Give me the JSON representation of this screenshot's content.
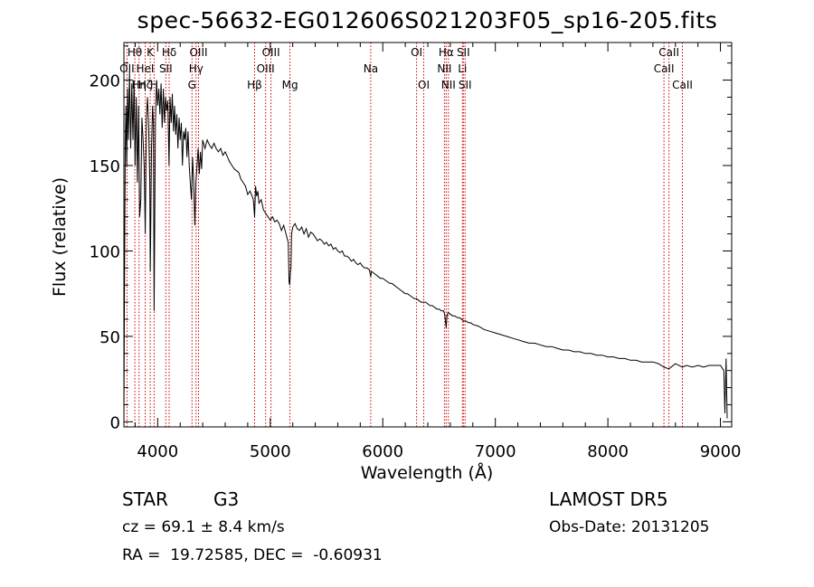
{
  "header": {
    "title": "spec-56632-EG012606S021203F05_sp16-205.fits"
  },
  "footer": {
    "class_label": "STAR",
    "subclass": "G3",
    "survey": "LAMOST DR5",
    "cz": "cz = 69.1 ± 8.4 km/s",
    "obs_date": "Obs-Date: 20131205",
    "coords": "RA =  19.72585, DEC =  -0.60931"
  },
  "colors": {
    "spectrum": "#000000",
    "line_marker": "#cc0000",
    "axes": "#000000"
  },
  "chart_data": {
    "type": "line",
    "title": "spec-56632-EG012606S021203F05_sp16-205.fits",
    "xlabel": "Wavelength (Å)",
    "ylabel": "Flux (relative)",
    "xlim": [
      3700,
      9100
    ],
    "ylim": [
      -3,
      222
    ],
    "xticks": [
      4000,
      5000,
      6000,
      7000,
      8000,
      9000
    ],
    "yticks": [
      0,
      50,
      100,
      150,
      200
    ],
    "grid": false,
    "series": [
      {
        "values": [
          [
            3700,
            2
          ],
          [
            3705,
            75
          ],
          [
            3712,
            160
          ],
          [
            3718,
            185
          ],
          [
            3725,
            150
          ],
          [
            3732,
            195
          ],
          [
            3740,
            165
          ],
          [
            3750,
            205
          ],
          [
            3760,
            160
          ],
          [
            3770,
            198
          ],
          [
            3780,
            165
          ],
          [
            3790,
            200
          ],
          [
            3800,
            150
          ],
          [
            3810,
            190
          ],
          [
            3820,
            140
          ],
          [
            3830,
            185
          ],
          [
            3840,
            120
          ],
          [
            3850,
            130
          ],
          [
            3860,
            178
          ],
          [
            3870,
            165
          ],
          [
            3880,
            150
          ],
          [
            3890,
            110
          ],
          [
            3900,
            178
          ],
          [
            3910,
            190
          ],
          [
            3920,
            172
          ],
          [
            3930,
            140
          ],
          [
            3934,
            88
          ],
          [
            3938,
            110
          ],
          [
            3945,
            160
          ],
          [
            3955,
            185
          ],
          [
            3962,
            175
          ],
          [
            3968,
            65
          ],
          [
            3972,
            95
          ],
          [
            3980,
            175
          ],
          [
            3990,
            200
          ],
          [
            4000,
            185
          ],
          [
            4010,
            195
          ],
          [
            4020,
            180
          ],
          [
            4030,
            198
          ],
          [
            4040,
            172
          ],
          [
            4050,
            195
          ],
          [
            4060,
            175
          ],
          [
            4070,
            190
          ],
          [
            4080,
            182
          ],
          [
            4090,
            188
          ],
          [
            4101,
            150
          ],
          [
            4110,
            190
          ],
          [
            4120,
            175
          ],
          [
            4130,
            192
          ],
          [
            4140,
            170
          ],
          [
            4150,
            185
          ],
          [
            4160,
            168
          ],
          [
            4170,
            180
          ],
          [
            4180,
            160
          ],
          [
            4190,
            178
          ],
          [
            4200,
            165
          ],
          [
            4210,
            175
          ],
          [
            4220,
            150
          ],
          [
            4230,
            170
          ],
          [
            4240,
            165
          ],
          [
            4250,
            172
          ],
          [
            4260,
            155
          ],
          [
            4270,
            170
          ],
          [
            4280,
            150
          ],
          [
            4290,
            140
          ],
          [
            4300,
            130
          ],
          [
            4310,
            155
          ],
          [
            4320,
            140
          ],
          [
            4330,
            115
          ],
          [
            4340,
            140
          ],
          [
            4350,
            150
          ],
          [
            4360,
            160
          ],
          [
            4370,
            145
          ],
          [
            4380,
            158
          ],
          [
            4390,
            148
          ],
          [
            4400,
            165
          ],
          [
            4420,
            160
          ],
          [
            4440,
            165
          ],
          [
            4460,
            162
          ],
          [
            4480,
            160
          ],
          [
            4500,
            163
          ],
          [
            4520,
            160
          ],
          [
            4540,
            158
          ],
          [
            4560,
            160
          ],
          [
            4580,
            156
          ],
          [
            4600,
            158
          ],
          [
            4620,
            155
          ],
          [
            4640,
            152
          ],
          [
            4660,
            150
          ],
          [
            4680,
            148
          ],
          [
            4700,
            147
          ],
          [
            4720,
            146
          ],
          [
            4740,
            142
          ],
          [
            4760,
            140
          ],
          [
            4780,
            138
          ],
          [
            4800,
            133
          ],
          [
            4820,
            135
          ],
          [
            4840,
            132
          ],
          [
            4850,
            130
          ],
          [
            4861,
            120
          ],
          [
            4870,
            138
          ],
          [
            4880,
            132
          ],
          [
            4890,
            135
          ],
          [
            4900,
            128
          ],
          [
            4920,
            130
          ],
          [
            4940,
            124
          ],
          [
            4960,
            122
          ],
          [
            4980,
            120
          ],
          [
            5000,
            118
          ],
          [
            5020,
            120
          ],
          [
            5040,
            117
          ],
          [
            5060,
            118
          ],
          [
            5080,
            116
          ],
          [
            5100,
            112
          ],
          [
            5120,
            115
          ],
          [
            5140,
            110
          ],
          [
            5160,
            105
          ],
          [
            5167,
            82
          ],
          [
            5173,
            80
          ],
          [
            5180,
            88
          ],
          [
            5184,
            90
          ],
          [
            5190,
            110
          ],
          [
            5200,
            114
          ],
          [
            5220,
            116
          ],
          [
            5240,
            113
          ],
          [
            5260,
            112
          ],
          [
            5280,
            114
          ],
          [
            5300,
            110
          ],
          [
            5320,
            113
          ],
          [
            5340,
            108
          ],
          [
            5360,
            111
          ],
          [
            5380,
            110
          ],
          [
            5400,
            108
          ],
          [
            5420,
            106
          ],
          [
            5440,
            107
          ],
          [
            5460,
            106
          ],
          [
            5480,
            104
          ],
          [
            5500,
            105
          ],
          [
            5520,
            103
          ],
          [
            5540,
            104
          ],
          [
            5560,
            101
          ],
          [
            5580,
            102
          ],
          [
            5600,
            100
          ],
          [
            5620,
            99
          ],
          [
            5640,
            100
          ],
          [
            5660,
            97
          ],
          [
            5680,
            97
          ],
          [
            5700,
            96
          ],
          [
            5720,
            94
          ],
          [
            5740,
            95
          ],
          [
            5760,
            93
          ],
          [
            5780,
            92
          ],
          [
            5800,
            93
          ],
          [
            5820,
            91
          ],
          [
            5840,
            90
          ],
          [
            5860,
            90
          ],
          [
            5880,
            89
          ],
          [
            5893,
            85
          ],
          [
            5900,
            88
          ],
          [
            5920,
            87
          ],
          [
            5940,
            86
          ],
          [
            5960,
            85
          ],
          [
            5980,
            84
          ],
          [
            6000,
            84
          ],
          [
            6020,
            83
          ],
          [
            6040,
            82
          ],
          [
            6060,
            81
          ],
          [
            6080,
            81
          ],
          [
            6100,
            80
          ],
          [
            6120,
            79
          ],
          [
            6140,
            78
          ],
          [
            6160,
            77
          ],
          [
            6180,
            76
          ],
          [
            6200,
            75
          ],
          [
            6220,
            75
          ],
          [
            6240,
            74
          ],
          [
            6260,
            73
          ],
          [
            6280,
            72
          ],
          [
            6300,
            72
          ],
          [
            6320,
            71
          ],
          [
            6340,
            70
          ],
          [
            6360,
            70
          ],
          [
            6380,
            70
          ],
          [
            6400,
            69
          ],
          [
            6420,
            68
          ],
          [
            6440,
            68
          ],
          [
            6460,
            67
          ],
          [
            6480,
            66
          ],
          [
            6500,
            66
          ],
          [
            6520,
            65
          ],
          [
            6540,
            65
          ],
          [
            6550,
            63
          ],
          [
            6563,
            55
          ],
          [
            6570,
            62
          ],
          [
            6580,
            64
          ],
          [
            6600,
            63
          ],
          [
            6620,
            62
          ],
          [
            6640,
            62
          ],
          [
            6660,
            61
          ],
          [
            6680,
            61
          ],
          [
            6700,
            60
          ],
          [
            6720,
            59
          ],
          [
            6740,
            59
          ],
          [
            6760,
            58
          ],
          [
            6780,
            58
          ],
          [
            6800,
            57
          ],
          [
            6850,
            56
          ],
          [
            6900,
            54
          ],
          [
            6950,
            53
          ],
          [
            7000,
            52
          ],
          [
            7050,
            51
          ],
          [
            7100,
            50
          ],
          [
            7150,
            49
          ],
          [
            7200,
            48
          ],
          [
            7250,
            47
          ],
          [
            7300,
            46
          ],
          [
            7350,
            46
          ],
          [
            7400,
            45
          ],
          [
            7450,
            44
          ],
          [
            7500,
            44
          ],
          [
            7550,
            43
          ],
          [
            7600,
            42
          ],
          [
            7650,
            42
          ],
          [
            7700,
            41
          ],
          [
            7750,
            41
          ],
          [
            7800,
            40
          ],
          [
            7850,
            40
          ],
          [
            7900,
            39
          ],
          [
            7950,
            39
          ],
          [
            8000,
            38
          ],
          [
            8050,
            38
          ],
          [
            8100,
            37
          ],
          [
            8150,
            37
          ],
          [
            8200,
            36
          ],
          [
            8250,
            36
          ],
          [
            8300,
            35
          ],
          [
            8350,
            35
          ],
          [
            8400,
            35
          ],
          [
            8450,
            34
          ],
          [
            8498,
            32
          ],
          [
            8542,
            31
          ],
          [
            8600,
            34
          ],
          [
            8662,
            32
          ],
          [
            8700,
            33
          ],
          [
            8750,
            32
          ],
          [
            8800,
            33
          ],
          [
            8850,
            32
          ],
          [
            8900,
            33
          ],
          [
            8950,
            33
          ],
          [
            9000,
            33
          ],
          [
            9030,
            30
          ],
          [
            9040,
            5
          ],
          [
            9050,
            37
          ],
          [
            9060,
            2
          ]
        ]
      }
    ],
    "line_markers": [
      {
        "label": "Hθ",
        "wavelength": 3797,
        "row": 0
      },
      {
        "label": "OII",
        "wavelength": 3727,
        "row": 1
      },
      {
        "label": "Hη",
        "wavelength": 3835,
        "row": 2
      },
      {
        "label": "K",
        "wavelength": 3934,
        "row": 0
      },
      {
        "label": "HeI",
        "wavelength": 3889,
        "row": 1
      },
      {
        "label": "Hζ",
        "wavelength": 3889,
        "row": 2
      },
      {
        "label": "Hδ",
        "wavelength": 4102,
        "row": 0
      },
      {
        "label": "SII",
        "wavelength": 4072,
        "row": 1
      },
      {
        "label": "H",
        "wavelength": 3968,
        "row": 2
      },
      {
        "label": "OIII",
        "wavelength": 4363,
        "row": 0
      },
      {
        "label": "Hγ",
        "wavelength": 4341,
        "row": 1
      },
      {
        "label": "G",
        "wavelength": 4305,
        "row": 2
      },
      {
        "label": "OIII",
        "wavelength": 5007,
        "row": 0
      },
      {
        "label": "OIII",
        "wavelength": 4959,
        "row": 1
      },
      {
        "label": "Hβ",
        "wavelength": 4861,
        "row": 2
      },
      {
        "label": "Mg",
        "wavelength": 5175,
        "row": 2
      },
      {
        "label": "Na",
        "wavelength": 5893,
        "row": 1
      },
      {
        "label": "OI",
        "wavelength": 6300,
        "row": 0
      },
      {
        "label": "OI",
        "wavelength": 6364,
        "row": 2
      },
      {
        "label": "Hα",
        "wavelength": 6563,
        "row": 0
      },
      {
        "label": "NII",
        "wavelength": 6548,
        "row": 1
      },
      {
        "label": "NII",
        "wavelength": 6583,
        "row": 2
      },
      {
        "label": "SII",
        "wavelength": 6716,
        "row": 0
      },
      {
        "label": "Li",
        "wavelength": 6708,
        "row": 1
      },
      {
        "label": "SII",
        "wavelength": 6731,
        "row": 2
      },
      {
        "label": "CaII",
        "wavelength": 8542,
        "row": 0
      },
      {
        "label": "CaII",
        "wavelength": 8498,
        "row": 1
      },
      {
        "label": "CaII",
        "wavelength": 8662,
        "row": 2
      }
    ]
  }
}
